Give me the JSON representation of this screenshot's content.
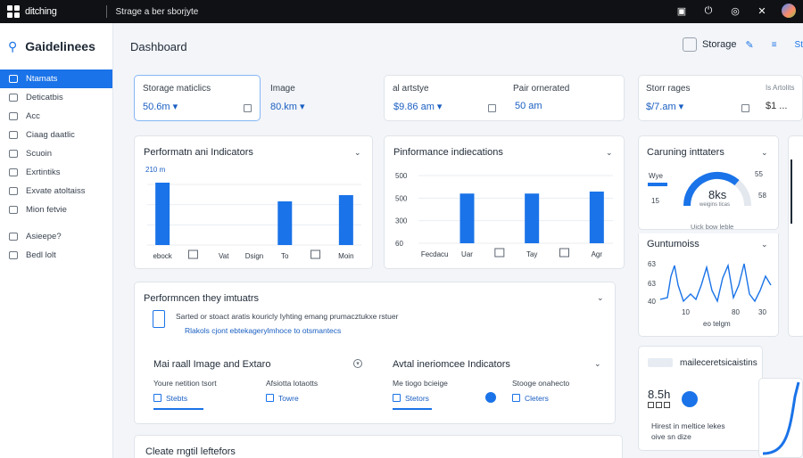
{
  "topbar": {
    "app_name": "ditching",
    "breadcrumb": "Strage a ber sborjyte"
  },
  "sidebar": {
    "title": "Gaidelinees",
    "items": [
      {
        "label": "Ntamats",
        "active": true
      },
      {
        "label": "Deticatbis"
      },
      {
        "label": "Acc"
      },
      {
        "label": "Ciaag daatlic"
      },
      {
        "label": "Scuoin"
      },
      {
        "label": "Exrtintiks"
      },
      {
        "label": "Exvate atoltaiss"
      },
      {
        "label": "Mion fetvie"
      },
      {
        "label": "Asieepe?"
      },
      {
        "label": "Bedl lolt"
      }
    ]
  },
  "header": {
    "title": "Dashboard",
    "storage_label": "Storage",
    "short_label": "St"
  },
  "stats": [
    {
      "label": "Storage maticlics",
      "value": "50.6m ▾"
    },
    {
      "label": "Image",
      "value": "80.km ▾"
    },
    {
      "label": "al artstye",
      "value": "$9.86 am ▾"
    },
    {
      "label": "Pair ornerated",
      "value": "50 am"
    },
    {
      "label": "Storr rages",
      "value": "$/7.am ▾"
    },
    {
      "label": "Is Artolits",
      "value": "$1 ..."
    }
  ],
  "chart_left": {
    "title": "Performatn ani Indicators",
    "chart_data": {
      "type": "bar",
      "title": "Performatn ani Indicators",
      "ytop_label": "210 m",
      "categories": [
        "ebock",
        "",
        "Vat",
        "Dsign",
        "To",
        "",
        "Moin"
      ],
      "values": [
        100,
        0,
        0,
        0,
        70,
        0,
        80
      ]
    }
  },
  "chart_mid": {
    "title": "Pinformance indiecations",
    "chart_data": {
      "type": "bar",
      "title": "Pinformance indiecations",
      "yticks": [
        "500",
        "500",
        "300",
        "60"
      ],
      "categories": [
        "Fecdacu",
        "Uar",
        "",
        "Tay",
        "",
        "Agr"
      ],
      "values": [
        0,
        500,
        0,
        500,
        0,
        520
      ]
    }
  },
  "gauge_card": {
    "title": "Caruning inttaters",
    "left_label": "Wye",
    "left_value": "15",
    "gauge_value": "8ks",
    "gauge_sub": "weigins ticas",
    "right_top": "55",
    "right_bottom": "58",
    "footer": "Uick bow leble"
  },
  "line_card": {
    "title": "Guntumoiss",
    "yticks": [
      "63",
      "63",
      "40"
    ],
    "xticks": [
      "10",
      "80",
      "30"
    ],
    "footer": "eo telgm"
  },
  "perf_section": {
    "title": "Performncen they imtuatrs",
    "text1": "Sarted or stoact aratis kouricly Iyhting emang prumacztukxe rstuer",
    "link1": "Rlakols cjont ebtekagerylmhoce to otsmantecs"
  },
  "sub_left": {
    "title": "Mai raall Image and Extaro",
    "col1_label": "Youre netition tsort",
    "col1_link": "Stebts",
    "col2_label": "Afsiotta lotaotts",
    "col2_link": "Towre"
  },
  "sub_right": {
    "title": "Avtal ineriomcee Indicators",
    "col1_label": "Me tiogo bcieige",
    "col1_link": "Stetors",
    "col2_label": "Stooge onahecto",
    "col2_link": "Cleters"
  },
  "side_stats": {
    "title": "maileceretsicaistins",
    "value": "8.5h",
    "desc1": "Hirest in meltice lekes",
    "desc2": "oive sn dize"
  },
  "bottom_card": {
    "title": "Cleate rngtil leftefors"
  }
}
